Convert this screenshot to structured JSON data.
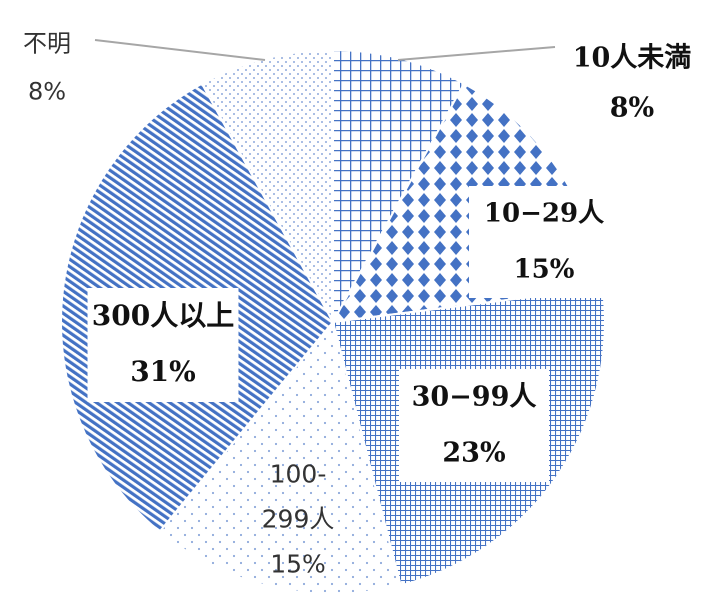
{
  "chart_data": {
    "type": "pie",
    "categories": [
      "10人未満",
      "10−29人",
      "30−99人",
      "100-299人",
      "300人以上",
      "不明"
    ],
    "values": [
      8,
      15,
      23,
      15,
      31,
      8
    ],
    "labels": [
      {
        "lines": [
          "10人未満",
          "8%"
        ]
      },
      {
        "lines": [
          "10−29人",
          "15%"
        ]
      },
      {
        "lines": [
          "30−99人",
          "23%"
        ]
      },
      {
        "lines": [
          "100-",
          "299人",
          "15%"
        ]
      },
      {
        "lines": [
          "300人以上",
          "31%"
        ]
      },
      {
        "lines": [
          "不明",
          "8%"
        ]
      }
    ],
    "colors": {
      "primary": "#4472c4",
      "light": "#8faadc",
      "background": "#ffffff",
      "leader_line": "#a6a6a6"
    },
    "patterns": [
      "large-grid",
      "diamond",
      "small-grid",
      "sparse-dots",
      "diagonal-stripes",
      "dots"
    ]
  }
}
